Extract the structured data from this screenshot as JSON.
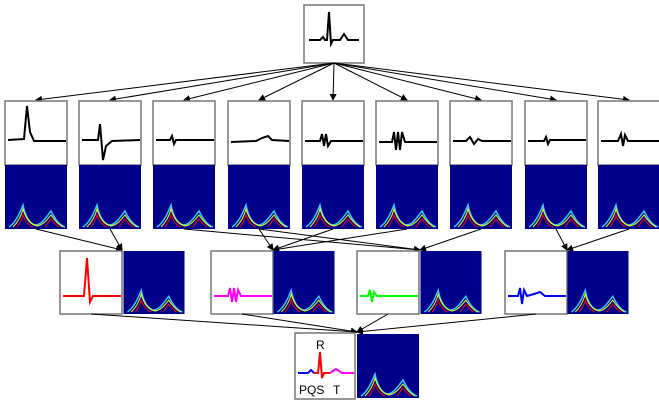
{
  "labels": {
    "r": "R",
    "pqs": "PQS",
    "t": "T"
  }
}
